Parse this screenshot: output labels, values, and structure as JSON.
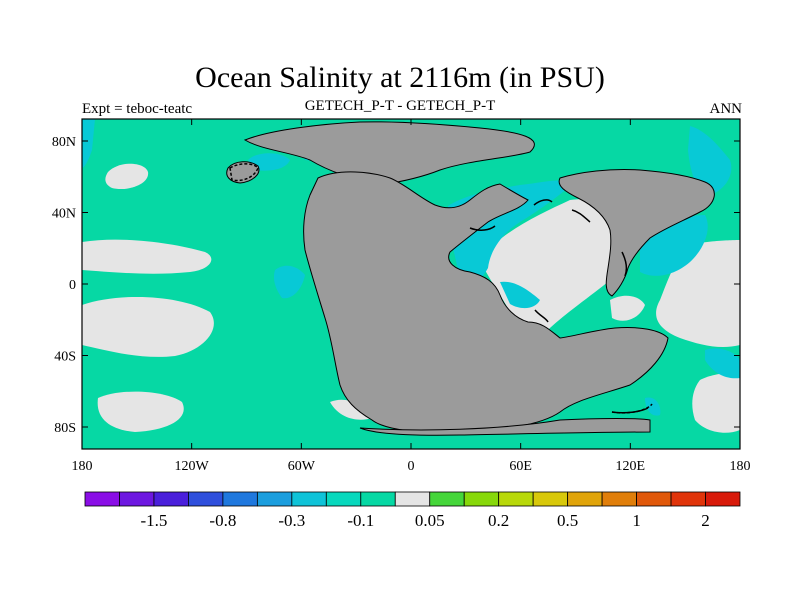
{
  "title": "Ocean Salinity at 2116m (in PSU)",
  "subtitle_left": "Expt = teboc-teatc",
  "subtitle_center": "GETECH_P-T - GETECH_P-T",
  "subtitle_right": "ANN",
  "map": {
    "projection": "cylindrical-equidistant",
    "lon_range": [
      -180,
      180
    ],
    "lat_range": [
      -90,
      90
    ],
    "lon_ticks": [
      "180",
      "120W",
      "60W",
      "0",
      "60E",
      "120E",
      "180"
    ],
    "lat_ticks": [
      "80N",
      "40N",
      "0",
      "40S",
      "80S"
    ],
    "colors": {
      "land": "#9b9b9b",
      "ocean_neutral": "#e5e5e5",
      "minus_0_1": "#06d8a4",
      "minus_0_3": "#08c9d6"
    }
  },
  "colorbar": {
    "colors": [
      "#8a0ee6",
      "#6d17e0",
      "#4a1fdb",
      "#2f4fdc",
      "#1f78de",
      "#1b9ede",
      "#0fc3d8",
      "#08d8bd",
      "#06d8a4",
      "#e5e5e5",
      "#45d63a",
      "#87d80a",
      "#b8d80a",
      "#d8c80a",
      "#e0a40a",
      "#e07e0a",
      "#e0580a",
      "#e0340a",
      "#d81a0a"
    ],
    "labels": [
      "-1.5",
      "-0.8",
      "-0.3",
      "-0.1",
      "0.05",
      "0.2",
      "0.5",
      "1",
      "2"
    ]
  }
}
